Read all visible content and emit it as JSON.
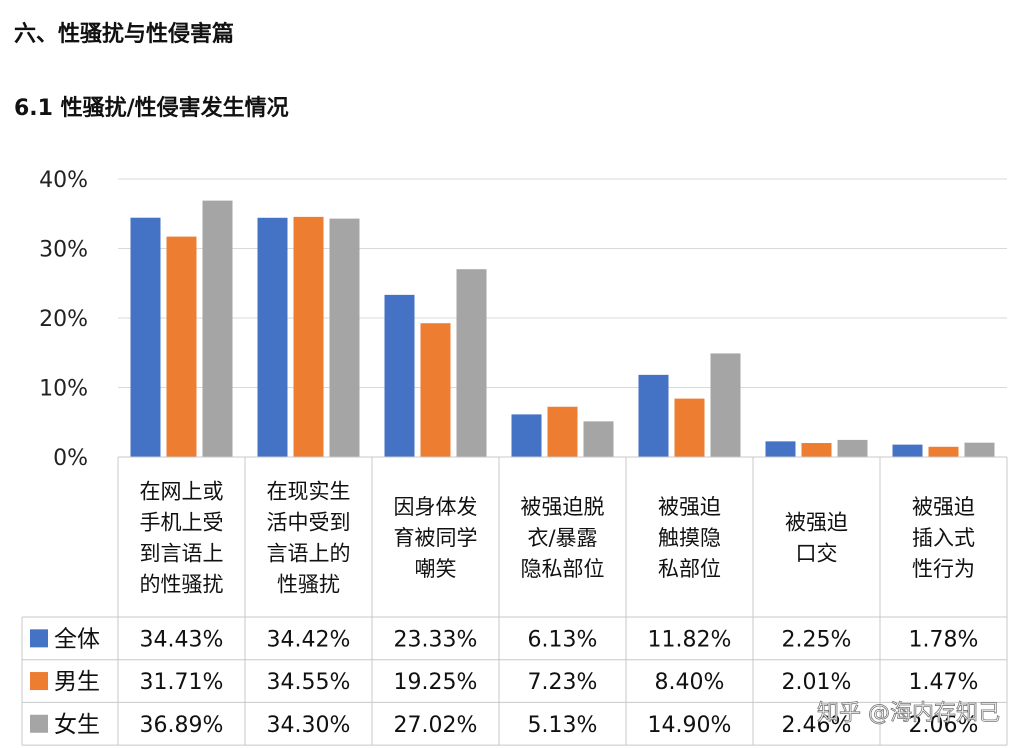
{
  "heading": "六、性骚扰与性侵害篇",
  "subheading": "6.1 性骚扰/性侵害发生情况",
  "watermark": "知乎 @海内存知己",
  "chart_data": {
    "type": "bar",
    "ylim": [
      0,
      40
    ],
    "yticks": [
      "0%",
      "10%",
      "20%",
      "30%",
      "40%"
    ],
    "grid": true,
    "categories": [
      [
        "在网上或",
        "手机上受",
        "到言语上",
        "的性骚扰"
      ],
      [
        "在现实生",
        "活中受到",
        "言语上的",
        "性骚扰"
      ],
      [
        "因身体发",
        "育被同学",
        "嘲笑"
      ],
      [
        "被强迫脱",
        "衣/暴露",
        "隐私部位"
      ],
      [
        "被强迫",
        "触摸隐",
        "私部位"
      ],
      [
        "被强迫",
        "口交"
      ],
      [
        "被强迫",
        "插入式",
        "性行为"
      ]
    ],
    "series": [
      {
        "name": "全体",
        "color": "#4472C4",
        "values": [
          34.43,
          34.42,
          23.33,
          6.13,
          11.82,
          2.25,
          1.78
        ],
        "labels": [
          "34.43%",
          "34.42%",
          "23.33%",
          "6.13%",
          "11.82%",
          "2.25%",
          "1.78%"
        ]
      },
      {
        "name": "男生",
        "color": "#ED7D31",
        "values": [
          31.71,
          34.55,
          19.25,
          7.23,
          8.4,
          2.01,
          1.47
        ],
        "labels": [
          "31.71%",
          "34.55%",
          "19.25%",
          "7.23%",
          "8.40%",
          "2.01%",
          "1.47%"
        ]
      },
      {
        "name": "女生",
        "color": "#A5A5A5",
        "values": [
          36.89,
          34.3,
          27.02,
          5.13,
          14.9,
          2.46,
          2.06
        ],
        "labels": [
          "36.89%",
          "34.30%",
          "27.02%",
          "5.13%",
          "14.90%",
          "2.46%",
          "2.06%"
        ]
      }
    ]
  }
}
